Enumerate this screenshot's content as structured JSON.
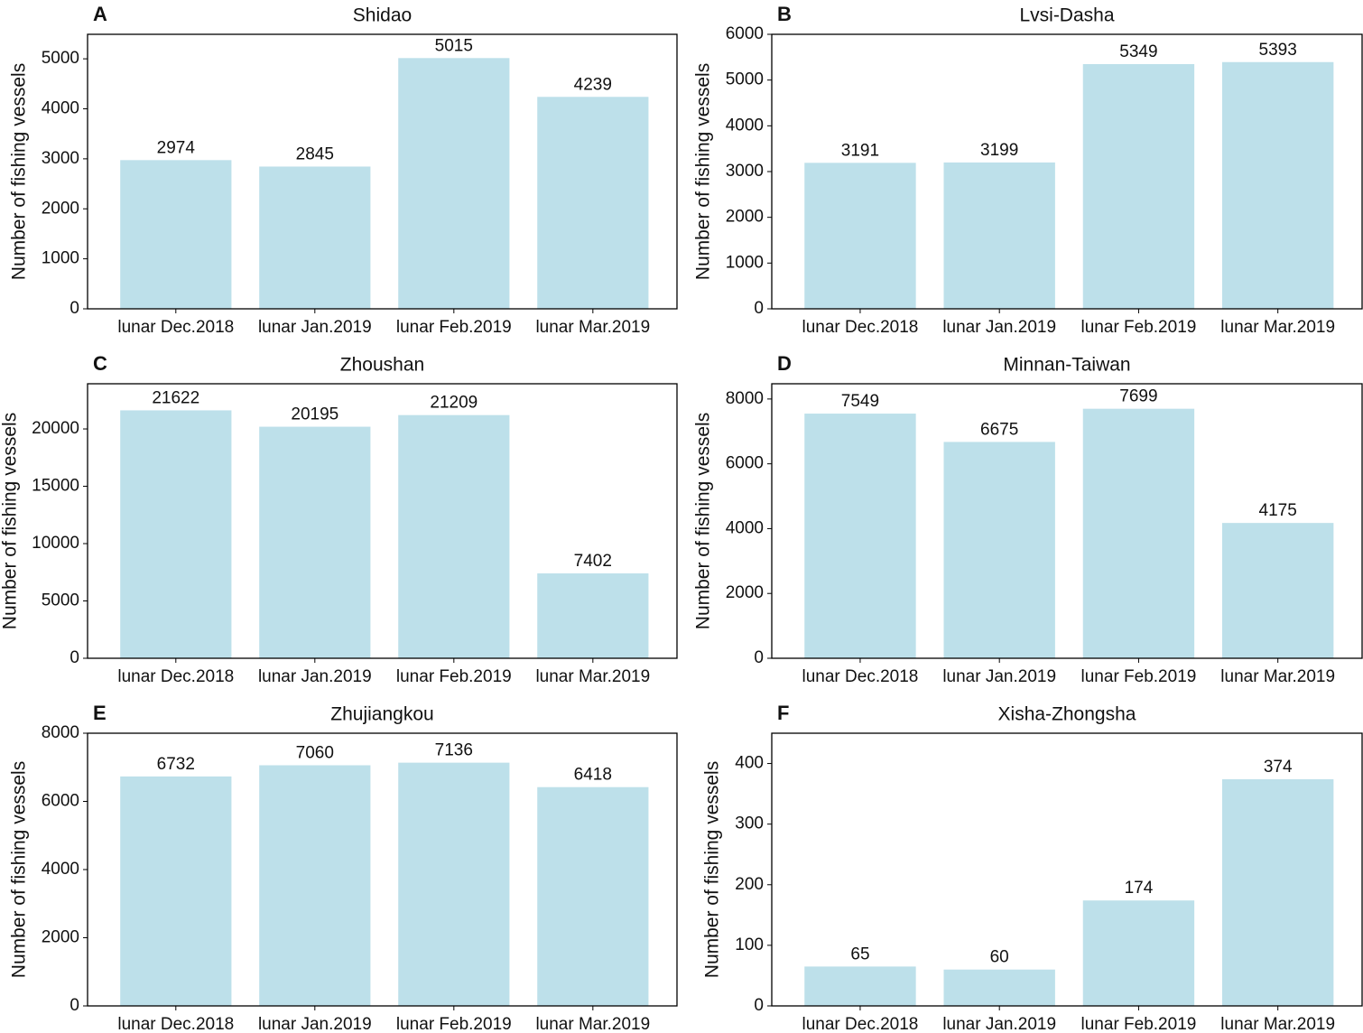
{
  "chart_data": [
    {
      "type": "bar",
      "panel_label": "A",
      "title": "Shidao",
      "ylabel": "Number of fishing vessels",
      "categories": [
        "lunar Dec.2018",
        "lunar Jan.2019",
        "lunar Feb.2019",
        "lunar Mar.2019"
      ],
      "values": [
        2974,
        2845,
        5015,
        4239
      ],
      "color": "#bde0ea",
      "ylim": [
        0,
        5490
      ],
      "yticks": [
        0,
        1000,
        2000,
        3000,
        4000,
        5000
      ]
    },
    {
      "type": "bar",
      "panel_label": "B",
      "title": "Lvsi-Dasha",
      "ylabel": "Number of fishing vessels",
      "categories": [
        "lunar Dec.2018",
        "lunar Jan.2019",
        "lunar Feb.2019",
        "lunar Mar.2019"
      ],
      "values": [
        3191,
        3199,
        5349,
        5393
      ],
      "color": "#bde0ea",
      "ylim": [
        0,
        6000
      ],
      "yticks": [
        0,
        1000,
        2000,
        3000,
        4000,
        5000,
        6000
      ]
    },
    {
      "type": "bar",
      "panel_label": "C",
      "title": "Zhoushan",
      "ylabel": "Number of fishing vessels",
      "categories": [
        "lunar Dec.2018",
        "lunar Jan.2019",
        "lunar Feb.2019",
        "lunar Mar.2019"
      ],
      "values": [
        21622,
        20195,
        21209,
        7402
      ],
      "color": "#bde0ea",
      "ylim": [
        0,
        23940
      ],
      "yticks": [
        0,
        5000,
        10000,
        15000,
        20000
      ]
    },
    {
      "type": "bar",
      "panel_label": "D",
      "title": "Minnan-Taiwan",
      "ylabel": "Number of fishing vessels",
      "categories": [
        "lunar Dec.2018",
        "lunar Jan.2019",
        "lunar Feb.2019",
        "lunar Mar.2019"
      ],
      "values": [
        7549,
        6675,
        7699,
        4175
      ],
      "color": "#bde0ea",
      "ylim": [
        0,
        8470
      ],
      "yticks": [
        0,
        2000,
        4000,
        6000,
        8000
      ]
    },
    {
      "type": "bar",
      "panel_label": "E",
      "title": "Zhujiangkou",
      "ylabel": "Number of fishing vessels",
      "categories": [
        "lunar Dec.2018",
        "lunar Jan.2019",
        "lunar Feb.2019",
        "lunar Mar.2019"
      ],
      "values": [
        6732,
        7060,
        7136,
        6418
      ],
      "color": "#bde0ea",
      "ylim": [
        0,
        8000
      ],
      "yticks": [
        0,
        2000,
        4000,
        6000,
        8000
      ]
    },
    {
      "type": "bar",
      "panel_label": "F",
      "title": "Xisha-Zhongsha",
      "ylabel": "Number of fishing vessels",
      "categories": [
        "lunar Dec.2018",
        "lunar Jan.2019",
        "lunar Feb.2019",
        "lunar Mar.2019"
      ],
      "values": [
        65,
        60,
        174,
        374
      ],
      "color": "#bde0ea",
      "ylim": [
        0,
        450
      ],
      "yticks": [
        0,
        100,
        200,
        300,
        400
      ]
    }
  ]
}
